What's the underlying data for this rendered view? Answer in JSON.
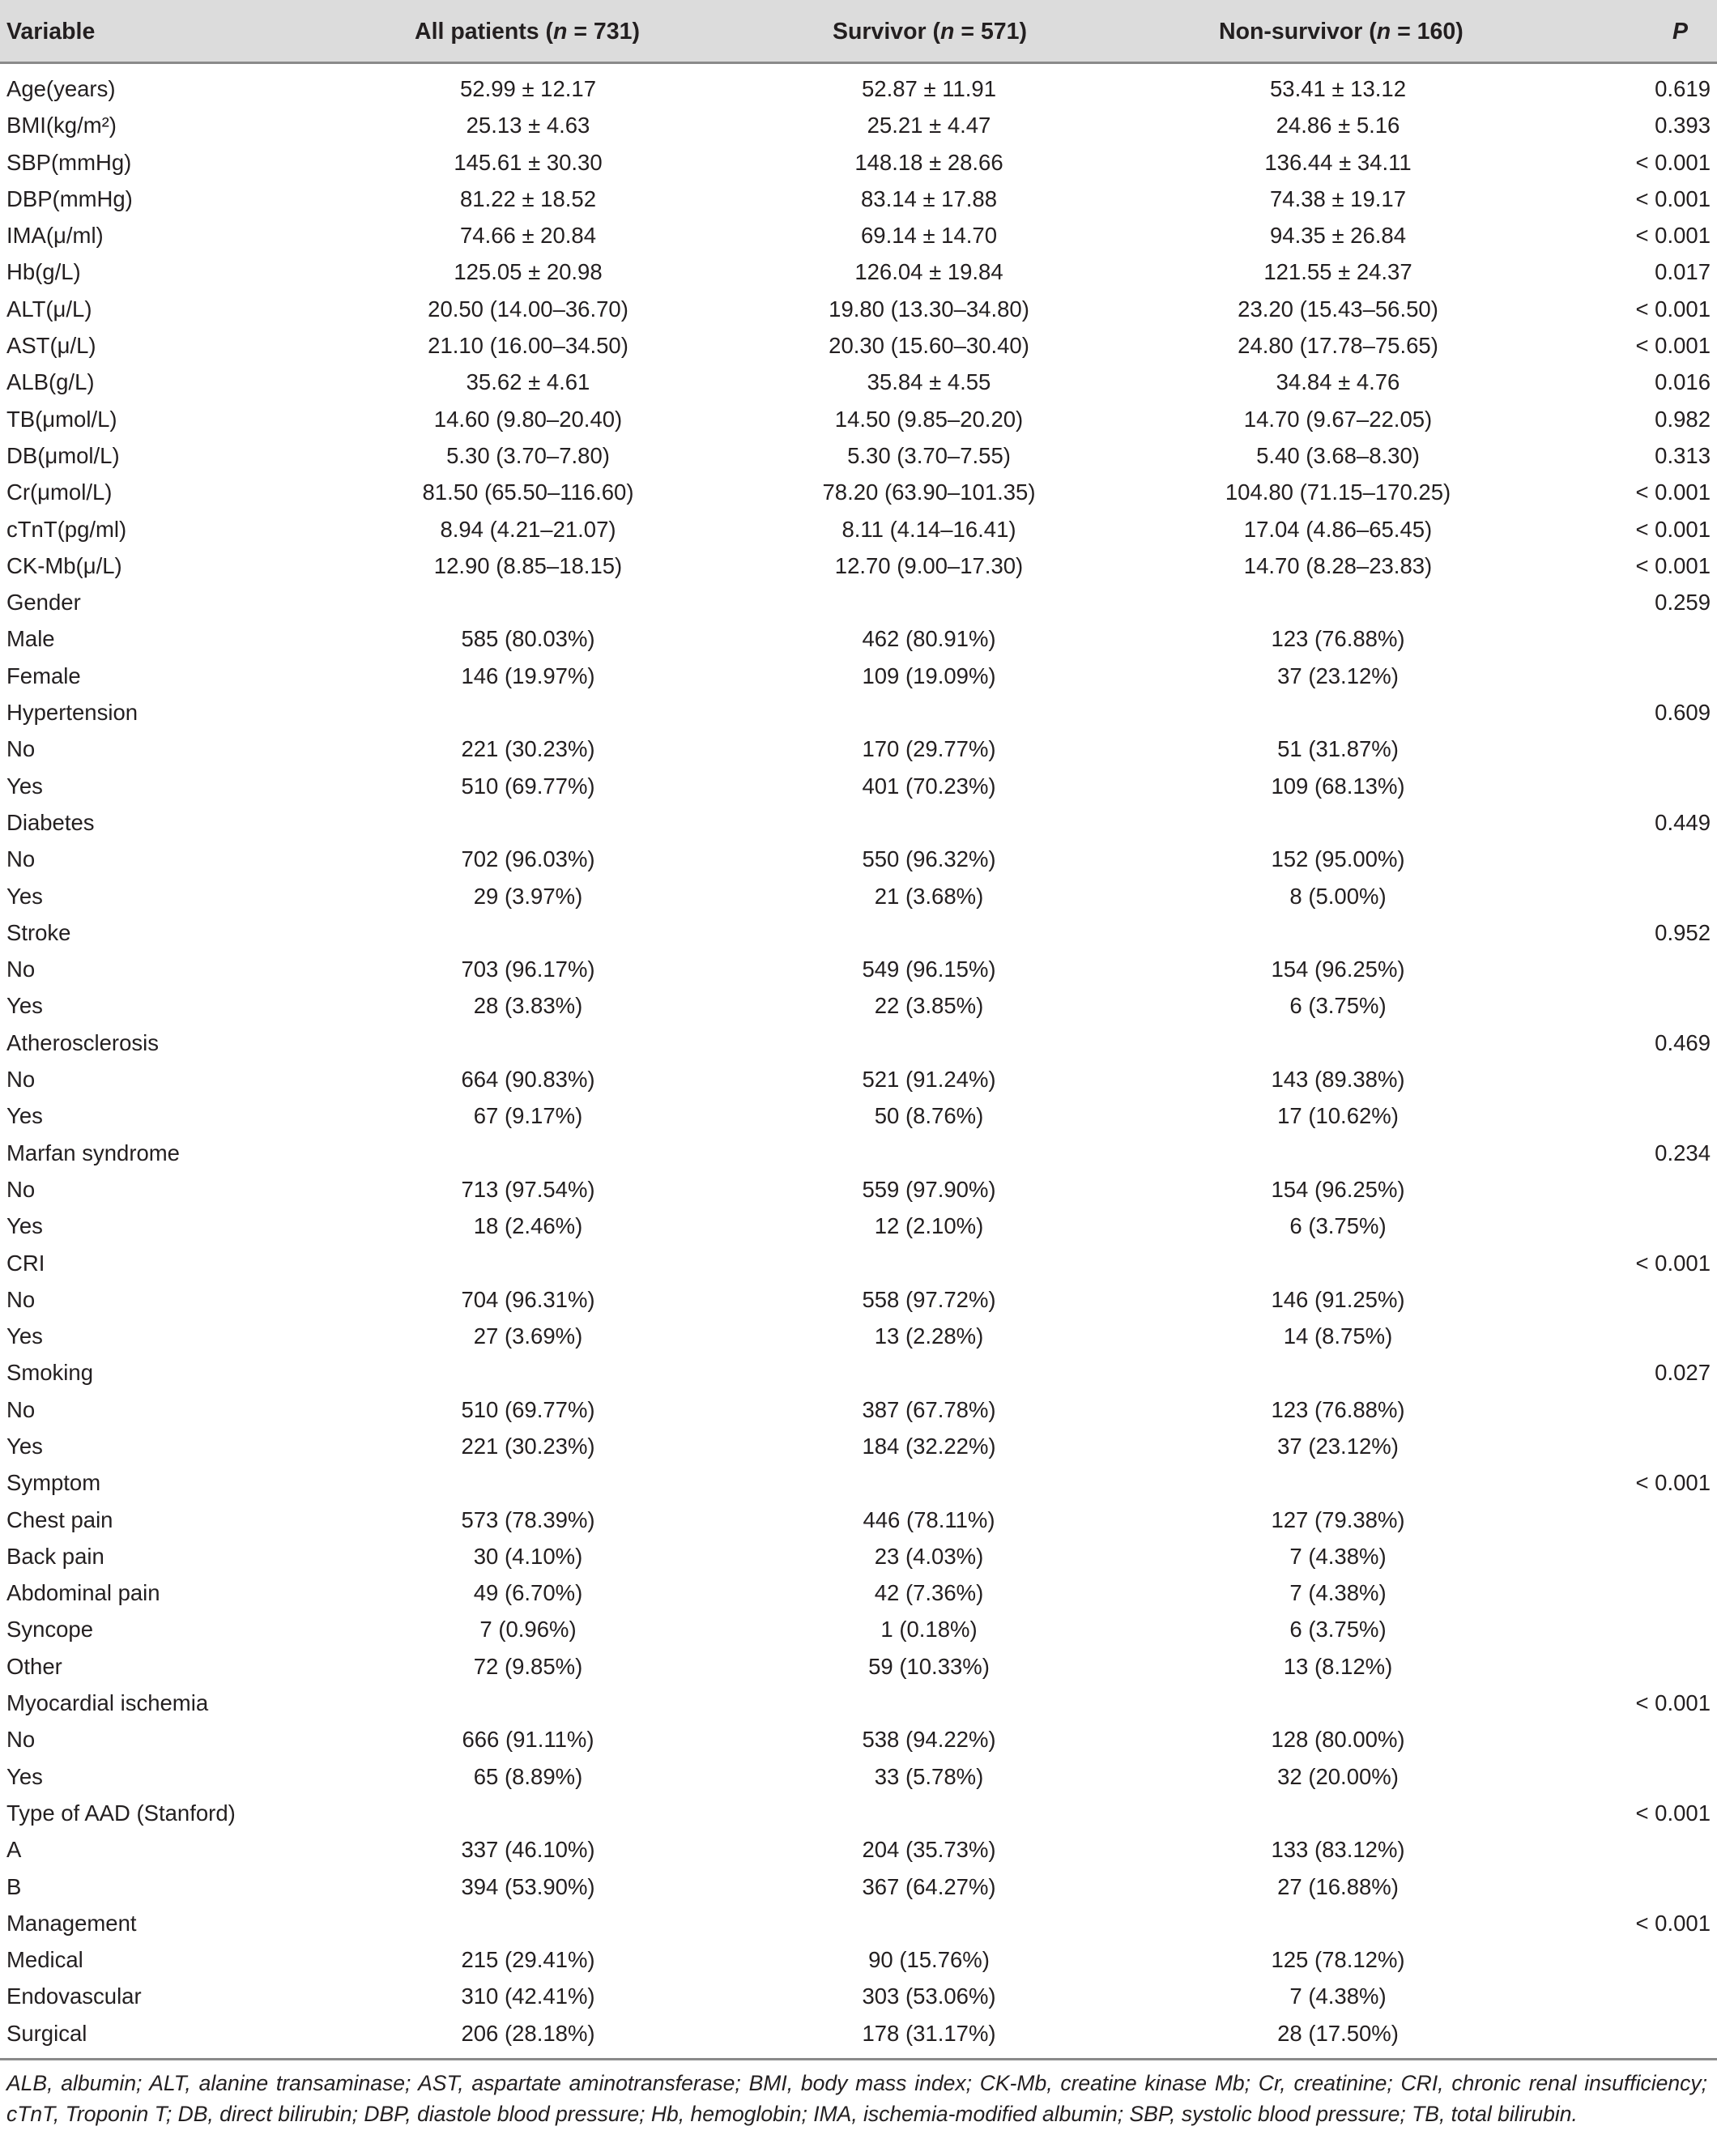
{
  "table": {
    "headers": {
      "variable": "Variable",
      "all_prefix": "All patients (",
      "all_n": "n",
      "all_suffix": " = 731)",
      "survivor_prefix": "Survivor (",
      "survivor_n": "n",
      "survivor_suffix": " = 571)",
      "nonsurvivor_prefix": "Non-survivor (",
      "nonsurvivor_n": "n",
      "nonsurvivor_suffix": " = 160)",
      "p": "P"
    },
    "rows": [
      [
        "Age(years)",
        "52.99 ± 12.17",
        "52.87 ± 11.91",
        "53.41 ± 13.12",
        "0.619"
      ],
      [
        "BMI(kg/m²)",
        "25.13 ± 4.63",
        "25.21 ± 4.47",
        "24.86 ± 5.16",
        "0.393"
      ],
      [
        "SBP(mmHg)",
        "145.61 ± 30.30",
        "148.18 ± 28.66",
        "136.44 ± 34.11",
        "< 0.001"
      ],
      [
        "DBP(mmHg)",
        "81.22 ± 18.52",
        "83.14 ± 17.88",
        "74.38 ± 19.17",
        "< 0.001"
      ],
      [
        "IMA(μ/ml)",
        "74.66 ± 20.84",
        "69.14 ± 14.70",
        "94.35 ± 26.84",
        "< 0.001"
      ],
      [
        "Hb(g/L)",
        "125.05 ± 20.98",
        "126.04 ± 19.84",
        "121.55 ± 24.37",
        "0.017"
      ],
      [
        "ALT(μ/L)",
        "20.50 (14.00–36.70)",
        "19.80 (13.30–34.80)",
        "23.20 (15.43–56.50)",
        "< 0.001"
      ],
      [
        "AST(μ/L)",
        "21.10 (16.00–34.50)",
        "20.30 (15.60–30.40)",
        "24.80 (17.78–75.65)",
        "< 0.001"
      ],
      [
        "ALB(g/L)",
        "35.62 ± 4.61",
        "35.84 ± 4.55",
        "34.84 ± 4.76",
        "0.016"
      ],
      [
        "TB(μmol/L)",
        "14.60 (9.80–20.40)",
        "14.50 (9.85–20.20)",
        "14.70 (9.67–22.05)",
        "0.982"
      ],
      [
        "DB(μmol/L)",
        "5.30 (3.70–7.80)",
        "5.30 (3.70–7.55)",
        "5.40 (3.68–8.30)",
        "0.313"
      ],
      [
        "Cr(μmol/L)",
        "81.50 (65.50–116.60)",
        "78.20 (63.90–101.35)",
        "104.80 (71.15–170.25)",
        "< 0.001"
      ],
      [
        "cTnT(pg/ml)",
        "8.94 (4.21–21.07)",
        "8.11 (4.14–16.41)",
        "17.04 (4.86–65.45)",
        "< 0.001"
      ],
      [
        "CK-Mb(μ/L)",
        "12.90 (8.85–18.15)",
        "12.70 (9.00–17.30)",
        "14.70 (8.28–23.83)",
        "< 0.001"
      ],
      [
        "Gender",
        "",
        "",
        "",
        "0.259"
      ],
      [
        "Male",
        "585 (80.03%)",
        "462 (80.91%)",
        "123 (76.88%)",
        ""
      ],
      [
        "Female",
        "146 (19.97%)",
        "109 (19.09%)",
        "37 (23.12%)",
        ""
      ],
      [
        "Hypertension",
        "",
        "",
        "",
        "0.609"
      ],
      [
        "No",
        "221 (30.23%)",
        "170 (29.77%)",
        "51 (31.87%)",
        ""
      ],
      [
        "Yes",
        "510 (69.77%)",
        "401 (70.23%)",
        "109 (68.13%)",
        ""
      ],
      [
        "Diabetes",
        "",
        "",
        "",
        "0.449"
      ],
      [
        "No",
        "702 (96.03%)",
        "550 (96.32%)",
        "152 (95.00%)",
        ""
      ],
      [
        "Yes",
        "29 (3.97%)",
        "21 (3.68%)",
        "8 (5.00%)",
        ""
      ],
      [
        "Stroke",
        "",
        "",
        "",
        "0.952"
      ],
      [
        "No",
        "703 (96.17%)",
        "549 (96.15%)",
        "154 (96.25%)",
        ""
      ],
      [
        "Yes",
        "28 (3.83%)",
        "22 (3.85%)",
        "6 (3.75%)",
        ""
      ],
      [
        "Atherosclerosis",
        "",
        "",
        "",
        "0.469"
      ],
      [
        "No",
        "664 (90.83%)",
        "521 (91.24%)",
        "143 (89.38%)",
        ""
      ],
      [
        "Yes",
        "67 (9.17%)",
        "50 (8.76%)",
        "17 (10.62%)",
        ""
      ],
      [
        "Marfan syndrome",
        "",
        "",
        "",
        "0.234"
      ],
      [
        "No",
        "713 (97.54%)",
        "559 (97.90%)",
        "154 (96.25%)",
        ""
      ],
      [
        "Yes",
        "18 (2.46%)",
        "12 (2.10%)",
        "6 (3.75%)",
        ""
      ],
      [
        "CRI",
        "",
        "",
        "",
        "< 0.001"
      ],
      [
        "No",
        "704 (96.31%)",
        "558 (97.72%)",
        "146 (91.25%)",
        ""
      ],
      [
        "Yes",
        "27 (3.69%)",
        "13 (2.28%)",
        "14 (8.75%)",
        ""
      ],
      [
        "Smoking",
        "",
        "",
        "",
        "0.027"
      ],
      [
        "No",
        "510 (69.77%)",
        "387 (67.78%)",
        "123 (76.88%)",
        ""
      ],
      [
        "Yes",
        "221 (30.23%)",
        "184 (32.22%)",
        "37 (23.12%)",
        ""
      ],
      [
        "Symptom",
        "",
        "",
        "",
        "< 0.001"
      ],
      [
        "Chest pain",
        "573 (78.39%)",
        "446 (78.11%)",
        "127 (79.38%)",
        ""
      ],
      [
        "Back pain",
        "30 (4.10%)",
        "23 (4.03%)",
        "7 (4.38%)",
        ""
      ],
      [
        "Abdominal pain",
        "49 (6.70%)",
        "42 (7.36%)",
        "7 (4.38%)",
        ""
      ],
      [
        "Syncope",
        "7 (0.96%)",
        "1 (0.18%)",
        "6 (3.75%)",
        ""
      ],
      [
        "Other",
        "72 (9.85%)",
        "59 (10.33%)",
        "13 (8.12%)",
        ""
      ],
      [
        "Myocardial ischemia",
        "",
        "",
        "",
        "< 0.001"
      ],
      [
        "No",
        "666 (91.11%)",
        "538 (94.22%)",
        "128 (80.00%)",
        ""
      ],
      [
        "Yes",
        "65 (8.89%)",
        "33 (5.78%)",
        "32 (20.00%)",
        ""
      ],
      [
        "Type of AAD (Stanford)",
        "",
        "",
        "",
        "< 0.001"
      ],
      [
        "A",
        "337 (46.10%)",
        "204 (35.73%)",
        "133 (83.12%)",
        ""
      ],
      [
        "B",
        "394 (53.90%)",
        "367 (64.27%)",
        "27 (16.88%)",
        ""
      ],
      [
        "Management",
        "",
        "",
        "",
        "< 0.001"
      ],
      [
        "Medical",
        "215 (29.41%)",
        "90 (15.76%)",
        "125 (78.12%)",
        ""
      ],
      [
        "Endovascular",
        "310 (42.41%)",
        "303 (53.06%)",
        "7 (4.38%)",
        ""
      ],
      [
        "Surgical",
        "206 (28.18%)",
        "178 (31.17%)",
        "28 (17.50%)",
        ""
      ]
    ],
    "footnote": "ALB, albumin; ALT, alanine transaminase; AST, aspartate aminotransferase; BMI, body mass index; CK-Mb, creatine kinase Mb; Cr, creatinine; CRI, chronic renal insufficiency; cTnT, Troponin T; DB, direct bilirubin; DBP, diastole blood pressure; Hb, hemoglobin; IMA, ischemia-modified albumin; SBP, systolic blood pressure; TB, total bilirubin."
  },
  "colors": {
    "header_background": "#dcdcdc",
    "rule": "#8a8a8a",
    "text": "#231f20"
  }
}
